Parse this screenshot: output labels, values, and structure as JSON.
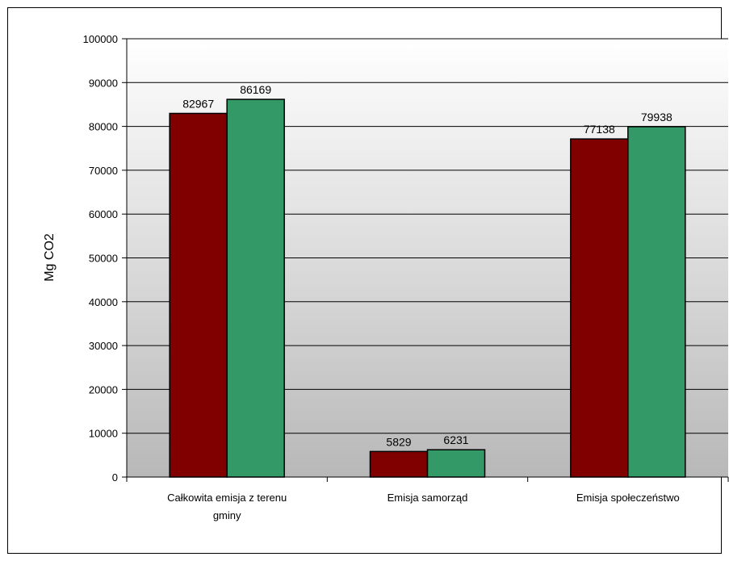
{
  "chart_data": {
    "type": "bar",
    "title": "",
    "xlabel": "",
    "ylabel": "Mg CO2",
    "ylim": [
      0,
      100000
    ],
    "yticks": [
      "0",
      "10000",
      "20000",
      "30000",
      "40000",
      "50000",
      "60000",
      "70000",
      "80000",
      "90000",
      "100000"
    ],
    "categories": [
      [
        "Całkowita emisja z terenu",
        "gminy"
      ],
      [
        "Emisja samorząd"
      ],
      [
        "Emisja społeczeństwo"
      ]
    ],
    "series": [
      {
        "color": "#800000",
        "values": [
          82967,
          5829,
          77138
        ],
        "labels": [
          "82967",
          "5829",
          "77138"
        ]
      },
      {
        "color": "#339966",
        "values": [
          86169,
          6231,
          79938
        ],
        "labels": [
          "86169",
          "6231",
          "79938"
        ]
      }
    ],
    "grid": true,
    "legend": "none"
  }
}
